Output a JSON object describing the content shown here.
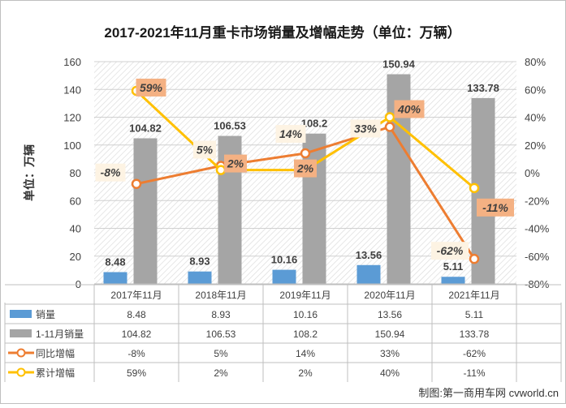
{
  "chart_data": {
    "type": "bar",
    "title": "2017-2021年11月重卡市场销量及增幅走势（单位：万辆）",
    "ylabel": "单位：万辆",
    "ylim": [
      0,
      160
    ],
    "yticks": [
      0,
      20,
      40,
      60,
      80,
      100,
      120,
      140,
      160
    ],
    "y2lim": [
      -80,
      80
    ],
    "y2ticks": [
      "-80%",
      "-60%",
      "-40%",
      "-20%",
      "0%",
      "20%",
      "40%",
      "60%",
      "80%"
    ],
    "categories": [
      "2017年11月",
      "2018年11月",
      "2019年11月",
      "2020年11月",
      "2021年11月"
    ],
    "series": [
      {
        "name": "销量",
        "kind": "bar",
        "axis": "left",
        "color": "#5b9bd5",
        "values": [
          8.48,
          8.93,
          10.16,
          13.56,
          5.11
        ],
        "labels": [
          "8.48",
          "8.93",
          "10.16",
          "13.56",
          "5.11"
        ]
      },
      {
        "name": "1-11月销量",
        "kind": "bar",
        "axis": "left",
        "color": "#a5a5a5",
        "values": [
          104.82,
          106.53,
          108.2,
          150.94,
          133.78
        ],
        "labels": [
          "104.82",
          "106.53",
          "108.2",
          "150.94",
          "133.78"
        ]
      },
      {
        "name": "同比增幅",
        "kind": "line",
        "axis": "right",
        "color": "#ed7d31",
        "values": [
          -8,
          5,
          14,
          33,
          -62
        ],
        "labels": [
          "-8%",
          "5%",
          "14%",
          "33%",
          "-62%"
        ]
      },
      {
        "name": "累计增幅",
        "kind": "line",
        "axis": "right",
        "color": "#ffc000",
        "values": [
          59,
          2,
          2,
          40,
          -11
        ],
        "labels": [
          "59%",
          "2%",
          "2%",
          "40%",
          "-11%"
        ]
      }
    ]
  },
  "footer": {
    "credit": "制图:第一商用车网 cvworld.cn"
  }
}
